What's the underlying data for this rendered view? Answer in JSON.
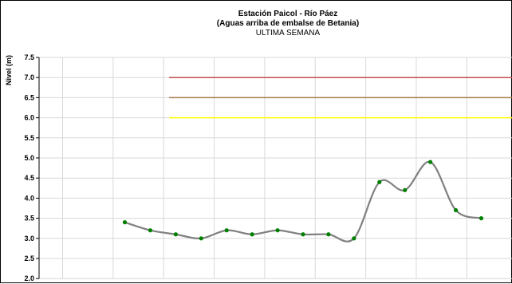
{
  "chart_data": {
    "type": "line",
    "title": "Estación Paicol  - Río Páez",
    "title_line2": "(Aguas arriba de embalse de Betania)",
    "subtitle": "ULTIMA SEMANA",
    "ylabel": "Nivel (m)",
    "xlabel": "",
    "ylim": [
      2.0,
      7.5
    ],
    "yticks": [
      "2.0",
      "2.5",
      "3.0",
      "3.5",
      "4.0",
      "4.5",
      "5.0",
      "5.5",
      "6.0",
      "6.5",
      "7.0",
      "7.5"
    ],
    "grid": true,
    "legend": "none",
    "x_gridline_count": 9,
    "series": [
      {
        "values": [
          3.4,
          3.2,
          3.1,
          3.0,
          3.2,
          3.1,
          3.2,
          3.1,
          3.1,
          3.0,
          4.4,
          4.2,
          4.9,
          3.7,
          3.5
        ],
        "line_color": "#808080",
        "marker_color": "#008000",
        "smooth": true
      }
    ],
    "threshold_lines": [
      {
        "y": 7.0,
        "color": "#C0504D"
      },
      {
        "y": 6.5,
        "color": "#A67C52"
      },
      {
        "y": 6.0,
        "color": "#FFFF00"
      }
    ]
  }
}
